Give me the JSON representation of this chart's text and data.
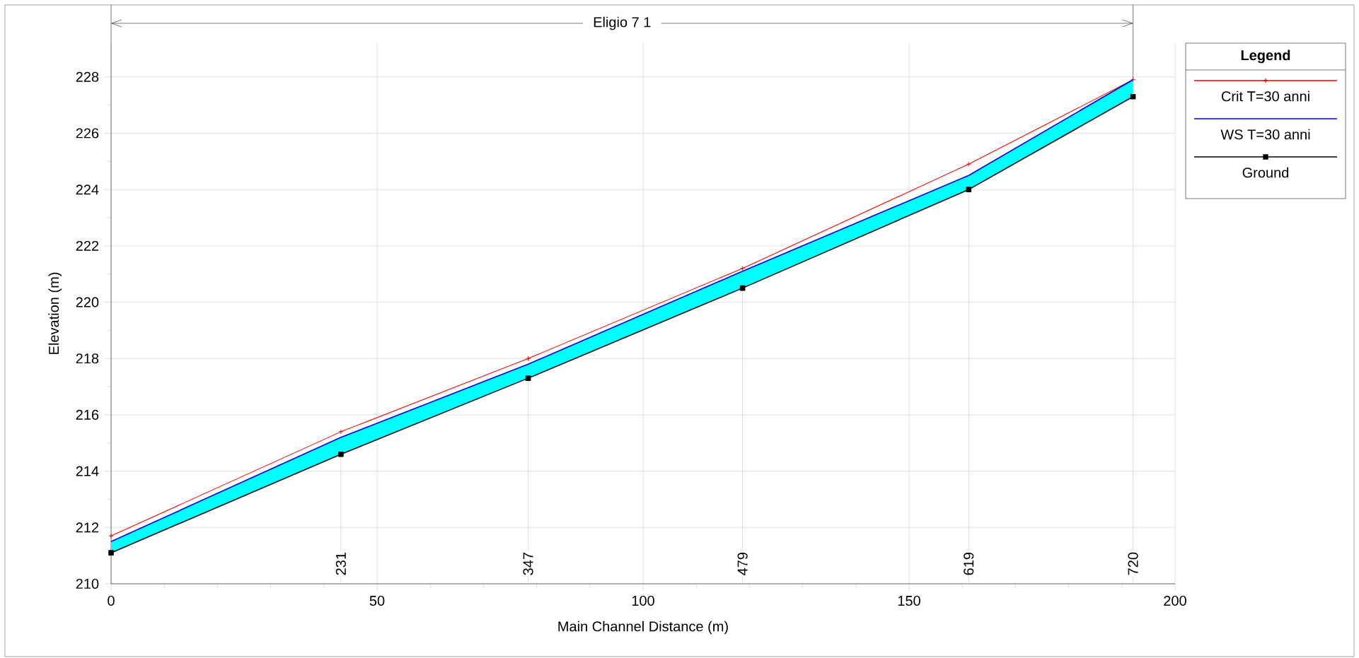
{
  "chart_data": {
    "type": "line",
    "title": "Eligio 7 1",
    "xlabel": "Main Channel Distance (m)",
    "ylabel": "Elevation (m)",
    "legend_title": "Legend",
    "x": [
      0,
      43.2,
      78.4,
      118.7,
      161.2,
      192.1
    ],
    "series": [
      {
        "name": "Crit  T=30 anni",
        "color": "#ff0000",
        "marker": "cross",
        "values": [
          211.7,
          215.4,
          218.0,
          221.2,
          224.9,
          227.9
        ]
      },
      {
        "name": "WS  T=30 anni",
        "color": "#0000ff",
        "marker": "none",
        "values": [
          211.5,
          215.2,
          217.8,
          221.1,
          224.5,
          227.9
        ],
        "lower": [
          211.1,
          214.6,
          217.3,
          220.5,
          224.0,
          227.3
        ],
        "upper": [
          211.5,
          215.2,
          217.8,
          221.1,
          224.5,
          227.9
        ]
      },
      {
        "name": "Ground",
        "color": "#000000",
        "marker": "square",
        "values": [
          211.1,
          214.6,
          217.3,
          220.5,
          224.0,
          227.3
        ]
      }
    ],
    "annotations": [
      {
        "text": "231",
        "x": 43.2,
        "y": 214.6
      },
      {
        "text": "347",
        "x": 78.4,
        "y": 217.3
      },
      {
        "text": "479",
        "x": 118.7,
        "y": 220.5
      },
      {
        "text": "619",
        "x": 161.2,
        "y": 224.0
      },
      {
        "text": "720",
        "x": 192.1,
        "y": 227.3
      }
    ],
    "xlim": [
      0,
      200
    ],
    "ylim": [
      210,
      229.2
    ],
    "xticks": [
      0,
      50,
      100,
      150,
      200
    ],
    "yticks": [
      210,
      212,
      214,
      216,
      218,
      220,
      222,
      224,
      226,
      228
    ],
    "grid": true,
    "legend": "top right"
  }
}
